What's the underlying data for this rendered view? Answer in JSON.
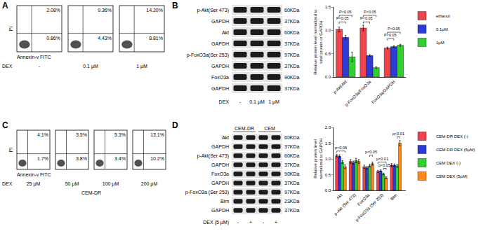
{
  "panel_labels": [
    "A",
    "B",
    "C",
    "D"
  ],
  "flow_cytometry": [
    {
      "y_label": "PI",
      "x_label": "Annexin-v FITC",
      "treatment_label": "DEX",
      "plots": [
        {
          "dose": "-",
          "upper_right": "2.08%",
          "lower_right": "0.86%"
        },
        {
          "dose": "0.1 μM",
          "upper_right": "9.36%",
          "lower_right": "4.43%"
        },
        {
          "dose": "1 μM",
          "upper_right": "14.20%",
          "lower_right": "8.81%"
        }
      ]
    },
    {
      "y_label": "PI",
      "x_label": "Annexin-v FITC",
      "treatment_label": "DEX",
      "cell_line": "CEM-DR",
      "plots": [
        {
          "dose": "25 μM",
          "upper_right": "4.1%",
          "lower_right": "1.7%"
        },
        {
          "dose": "50 μM",
          "upper_right": "3.5%",
          "lower_right": "3.8%"
        },
        {
          "dose": "100 μM",
          "upper_right": "5.3%",
          "lower_right": "3.4%"
        },
        {
          "dose": "200 μM",
          "upper_right": "13.1%",
          "lower_right": "10.2%"
        }
      ]
    }
  ],
  "western_blots": [
    {
      "rows": [
        {
          "protein": "p-Akt(Ser 473)",
          "size": "60KDa"
        },
        {
          "protein": "GAPDH",
          "size": "37KDa"
        },
        {
          "protein": "Akt",
          "size": "60KDa"
        },
        {
          "protein": "GAPDH",
          "size": "37KDa"
        },
        {
          "protein": "p-FoxO3a(Ser 253)",
          "size": "97KDa"
        },
        {
          "protein": "GAPDH",
          "size": "37KDa"
        },
        {
          "protein": "FoxO3a",
          "size": "90KDa"
        },
        {
          "protein": "GAPDH",
          "size": "37KDa"
        }
      ],
      "treatment_label": "DEX",
      "lanes": [
        "-",
        "0.1 μM",
        "1 μM"
      ]
    },
    {
      "groups": [
        "CEM-DR",
        "CEM"
      ],
      "rows": [
        {
          "protein": "Akt",
          "size": "60KDa"
        },
        {
          "protein": "GAPDH",
          "size": "37KDa"
        },
        {
          "protein": "p-Akt(Ser 473)",
          "size": "60KDa"
        },
        {
          "protein": "GAPDH",
          "size": "37KDa"
        },
        {
          "protein": "FoxO3a",
          "size": "90KDa"
        },
        {
          "protein": "GAPDH",
          "size": "37KDa"
        },
        {
          "protein": "p-FoxO3a (Ser 253)",
          "size": "97KDa"
        },
        {
          "protein": "Bim",
          "size": "23KDa"
        },
        {
          "protein": "GAPDH",
          "size": "37KDa"
        }
      ],
      "treatment_label": "DEX (5 μM)",
      "lanes": [
        "-",
        "+",
        "-",
        "+"
      ]
    }
  ],
  "chart_data": [
    {
      "type": "bar",
      "y_label": "Relative protein level normalized to total protein or GAPDH",
      "categories": [
        "p-Akt/Akt",
        "p-FoxO3a/FoxO3a",
        "FoxO3a/GAPDH"
      ],
      "series": [
        {
          "name": "ethanol",
          "color": "#f0444c",
          "values": [
            1.02,
            1.05,
            0.62
          ],
          "errors": [
            0.05,
            0.06,
            0.02
          ]
        },
        {
          "name": "0.1μM",
          "color": "#2e3cd6",
          "values": [
            0.85,
            0.46,
            0.65
          ],
          "errors": [
            0.04,
            0.02,
            0.02
          ]
        },
        {
          "name": "1μM",
          "color": "#2fd12f",
          "values": [
            0.43,
            0.2,
            0.68
          ],
          "errors": [
            0.1,
            0.02,
            0.02
          ]
        }
      ],
      "ylim": [
        0,
        1.5
      ],
      "yticks": [
        {
          "value": 0,
          "label": "0.0"
        },
        0.5,
        {
          "value": 1,
          "label": "1.0"
        },
        1.5
      ],
      "grid": false,
      "legend": "right",
      "data_labels": false,
      "annotations": [
        {
          "text": "P<0.05",
          "category": "p-Akt/Akt",
          "between": [
            "ethanol",
            "0.1μM"
          ],
          "y": 1.18
        },
        {
          "text": "P<0.05",
          "category": "p-Akt/Akt",
          "between": [
            "ethanol",
            "1μM"
          ],
          "y": 1.32
        },
        {
          "text": "P<0.05",
          "category": "p-FoxO3a/FoxO3a",
          "between": [
            "ethanol",
            "0.1μM"
          ],
          "y": 1.18
        },
        {
          "text": "P<0.05",
          "category": "p-FoxO3a/FoxO3a",
          "between": [
            "ethanol",
            "1μM"
          ],
          "y": 1.32
        },
        {
          "text": "P<0.05",
          "category": "FoxO3a/GAPDH",
          "between": [
            "ethanol",
            "0.1μM"
          ],
          "y": 0.82
        },
        {
          "text": "P<0.05",
          "category": "FoxO3a/GAPDH",
          "between": [
            "ethanol",
            "1μM"
          ],
          "y": 0.96
        }
      ]
    },
    {
      "type": "bar",
      "y_label": "Relative protein level normalized to GAPDH",
      "categories": [
        "Akt",
        "p-Akt (Ser 473)",
        "FoxO3a",
        "p-FoxO3a (Ser 253)",
        "Bim"
      ],
      "series": [
        {
          "name": "CEM-DR DEX (-)",
          "color": "#f0444c",
          "values": [
            1.1,
            0.92,
            0.75,
            0.6,
            0.8
          ],
          "errors": [
            0.04,
            0.06,
            0.05,
            0.03,
            0.05
          ]
        },
        {
          "name": "CEM-DR DEX (5μM)",
          "color": "#2e3cd6",
          "values": [
            1.08,
            0.88,
            0.72,
            0.62,
            0.8
          ],
          "errors": [
            0.05,
            0.05,
            0.04,
            0.03,
            0.04
          ]
        },
        {
          "name": "CEM DEX (-)",
          "color": "#2fd12f",
          "values": [
            0.9,
            0.95,
            0.78,
            0.52,
            0.78
          ],
          "errors": [
            0.05,
            0.07,
            0.04,
            0.03,
            0.05
          ]
        },
        {
          "name": "CEM DEX (5μM)",
          "color": "#ff8a1c",
          "values": [
            0.75,
            0.92,
            0.85,
            0.4,
            1.5
          ],
          "errors": [
            0.06,
            0.06,
            0.05,
            0.03,
            0.08
          ]
        }
      ],
      "ylim": [
        0,
        2
      ],
      "yticks": [
        {
          "value": 0,
          "label": "0.0"
        },
        0.5,
        {
          "value": 1,
          "label": "1.0"
        },
        1.5,
        {
          "value": 2,
          "label": "2.0"
        }
      ],
      "grid": false,
      "legend": "right",
      "data_labels": false,
      "annotations": [
        {
          "text": "p<0.05",
          "category": "Akt",
          "between": [
            "CEM-DR DEX (-)",
            "CEM DEX (5μM)"
          ],
          "y": 1.25
        },
        {
          "text": "p<0.05",
          "category": "FoxO3a",
          "between": [
            "CEM DEX (-)",
            "CEM DEX (5μM)"
          ],
          "y": 1.12
        },
        {
          "text": "p<0.05",
          "category": "p-FoxO3a (Ser 253)",
          "between": [
            "CEM DEX (-)",
            "CEM DEX (5μM)"
          ],
          "y": 0.7
        },
        {
          "text": "p<0.01",
          "category": "p-FoxO3a (Ser 253)",
          "between": [
            "CEM-DR DEX (-)",
            "CEM DEX (5μM)"
          ],
          "y": 0.9
        },
        {
          "text": "p<0.01",
          "category": "Bim",
          "between": [
            "CEM DEX (-)",
            "CEM DEX (5μM)"
          ],
          "y": 1.7
        }
      ]
    }
  ]
}
